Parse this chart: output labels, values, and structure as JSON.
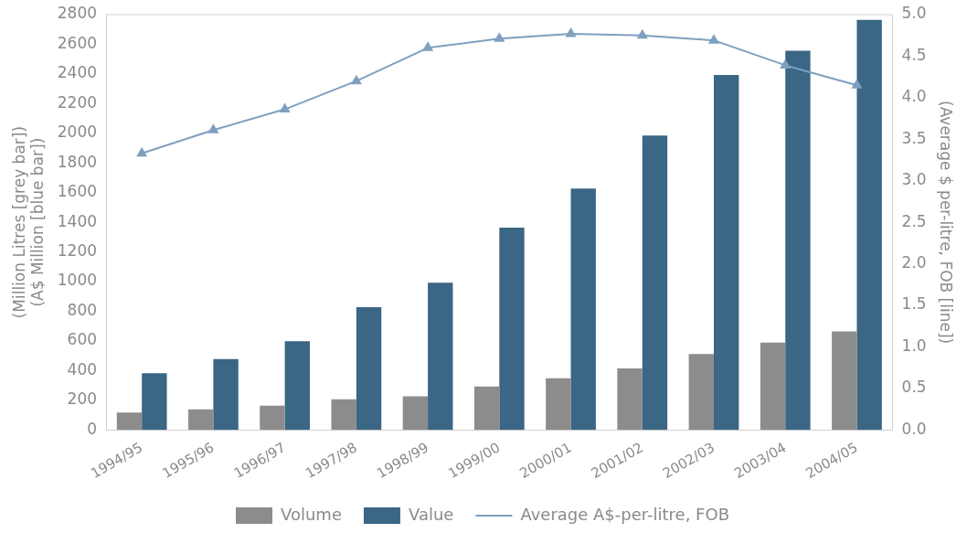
{
  "chart_data": {
    "type": "bar",
    "ylabel": "(Million Litres [grey bar])\n(A$ Million [blue bar])",
    "y2label": "(Average $ per-litre, FOB [line])",
    "categories": [
      "1994/95",
      "1995/96",
      "1996/97",
      "1997/98",
      "1998/99",
      "1999/00",
      "2000/01",
      "2001/02",
      "2002/03",
      "2003/04",
      "2004/05"
    ],
    "series": [
      {
        "name": "Volume",
        "color": "#8c8c8c",
        "values": [
          117,
          138,
          163,
          206,
          227,
          293,
          348,
          414,
          511,
          588,
          664
        ]
      },
      {
        "name": "Value",
        "color": "#3b6685",
        "values": [
          382,
          477,
          598,
          827,
          993,
          1364,
          1627,
          1985,
          2393,
          2556,
          2764
        ]
      },
      {
        "name": "Average A$-per-litre, FOB",
        "type": "line",
        "axis": "y2",
        "color": "#7f9fbf",
        "marker": "triangle",
        "values": [
          3.33,
          3.61,
          3.86,
          4.2,
          4.6,
          4.71,
          4.77,
          4.75,
          4.69,
          4.39,
          4.15
        ]
      }
    ],
    "ylim": [
      0,
      2800
    ],
    "yticks": [
      0,
      200,
      400,
      600,
      800,
      1000,
      1200,
      1400,
      1600,
      1800,
      2000,
      2200,
      2400,
      2600,
      2800
    ],
    "y2lim": [
      0,
      5
    ],
    "y2ticks": [
      {
        "value": 0,
        "label": "0.0"
      },
      {
        "value": 0.5,
        "label": "0.5"
      },
      {
        "value": 1,
        "label": "1.0"
      },
      {
        "value": 1.5,
        "label": "1.5"
      },
      {
        "value": 2,
        "label": "2.0"
      },
      {
        "value": 2.5,
        "label": "2.5"
      },
      {
        "value": 3,
        "label": "3.0"
      },
      {
        "value": 3.5,
        "label": "3.5"
      },
      {
        "value": 4,
        "label": "4.0"
      },
      {
        "value": 4.5,
        "label": "4.5"
      },
      {
        "value": 5,
        "label": "5.0"
      }
    ],
    "grid": false,
    "legend": "bottom"
  }
}
